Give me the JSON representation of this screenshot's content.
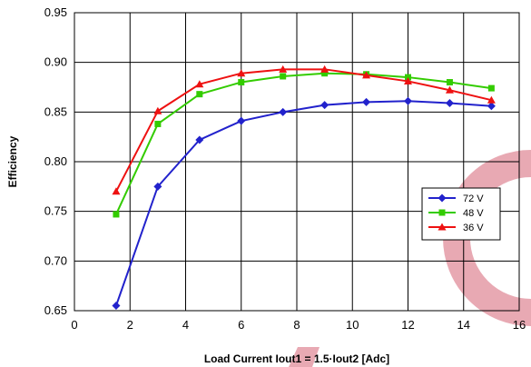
{
  "chart_data": {
    "type": "line",
    "title": "",
    "xlabel": "Load Current Iout1 = 1.5·Iout2 [Adc]",
    "ylabel": "Efficiency",
    "xlim": [
      0,
      16
    ],
    "ylim": [
      0.65,
      0.95
    ],
    "x_ticks": [
      "0",
      "2",
      "4",
      "6",
      "8",
      "10",
      "12",
      "14",
      "16"
    ],
    "y_ticks": [
      "0.65",
      "0.70",
      "0.75",
      "0.80",
      "0.85",
      "0.90",
      "0.95"
    ],
    "grid": true,
    "legend_position": "right-middle",
    "x": [
      1.5,
      3,
      4.5,
      6,
      7.5,
      9,
      10.5,
      12,
      13.5,
      15
    ],
    "series": [
      {
        "name": "72 V",
        "color": "#2222cc",
        "marker": "diamond",
        "values": [
          0.655,
          0.775,
          0.822,
          0.841,
          0.85,
          0.857,
          0.86,
          0.861,
          0.859,
          0.856
        ]
      },
      {
        "name": "48 V",
        "color": "#33cc00",
        "marker": "square",
        "values": [
          0.747,
          0.838,
          0.868,
          0.88,
          0.886,
          0.889,
          0.888,
          0.885,
          0.88,
          0.874
        ]
      },
      {
        "name": "36 V",
        "color": "#ee1111",
        "marker": "triangle",
        "values": [
          0.77,
          0.851,
          0.878,
          0.889,
          0.893,
          0.893,
          0.887,
          0.881,
          0.872,
          0.862
        ]
      }
    ]
  },
  "watermark_color": "#e8a9b3"
}
